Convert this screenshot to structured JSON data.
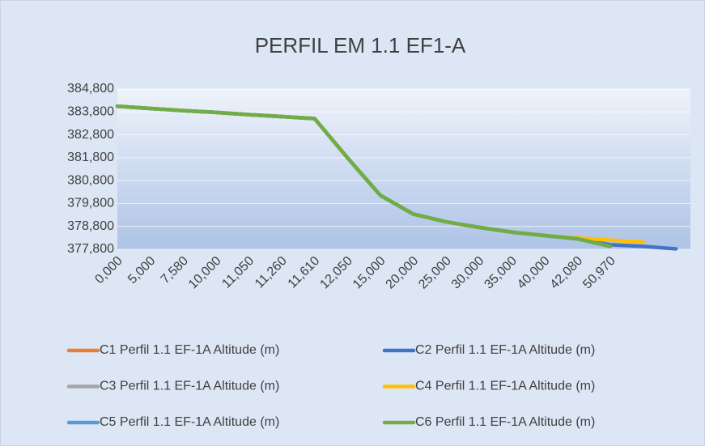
{
  "chart_data": {
    "type": "line",
    "title": "PERFIL EM 1.1 EF1-A",
    "categories": [
      "0,000",
      "5,000",
      "7,580",
      "10,000",
      "11,050",
      "11,260",
      "11,610",
      "12,050",
      "15,000",
      "20,000",
      "25,000",
      "30,000",
      "35,000",
      "40,000",
      "42,080",
      "50,970",
      null,
      null
    ],
    "series": [
      {
        "name": "C1 Perfil 1.1 EF-1A Altitude (m)",
        "color": "#ed7d31",
        "values": [
          384.05,
          383.95,
          383.86,
          383.78,
          383.68,
          383.6,
          383.51,
          381.8,
          380.16,
          379.34,
          379.0,
          378.76,
          378.55,
          378.4,
          378.26,
          377.93,
          null,
          null
        ]
      },
      {
        "name": "C2 Perfil 1.1 EF-1A Altitude (m)",
        "color": "#4472c4",
        "values": [
          384.05,
          383.95,
          383.86,
          383.78,
          383.68,
          383.6,
          383.51,
          381.8,
          380.16,
          379.34,
          379.0,
          378.76,
          378.55,
          378.4,
          378.26,
          378.0,
          377.93,
          377.82
        ]
      },
      {
        "name": "C3 Perfil 1.1 EF-1A Altitude (m)",
        "color": "#a5a5a5",
        "values": [
          384.05,
          383.95,
          383.86,
          383.78,
          383.68,
          383.6,
          383.51,
          381.8,
          380.16,
          379.34,
          379.0,
          378.76,
          378.55,
          378.4,
          378.26,
          377.93,
          null,
          null
        ]
      },
      {
        "name": "C4 Perfil 1.1 EF-1A Altitude (m)",
        "color": "#ffc000",
        "values": [
          384.05,
          383.95,
          383.86,
          383.78,
          383.68,
          383.6,
          383.51,
          381.8,
          380.16,
          379.34,
          379.0,
          378.76,
          378.55,
          378.4,
          378.3,
          378.2,
          378.12,
          null
        ]
      },
      {
        "name": "C5 Perfil 1.1 EF-1A Altitude (m)",
        "color": "#5b9bd5",
        "values": [
          384.05,
          383.95,
          383.86,
          383.78,
          383.68,
          383.6,
          383.51,
          381.8,
          380.16,
          379.34,
          379.0,
          378.76,
          378.55,
          378.4,
          378.26,
          377.93,
          null,
          null
        ]
      },
      {
        "name": "C6 Perfil 1.1 EF-1A Altitude (m)",
        "color": "#70ad47",
        "values": [
          384.05,
          383.95,
          383.86,
          383.78,
          383.68,
          383.6,
          383.51,
          381.8,
          380.16,
          379.34,
          379.0,
          378.76,
          378.55,
          378.4,
          378.26,
          377.93,
          null,
          null
        ]
      }
    ],
    "ylim": [
      377.8,
      384.8
    ],
    "yticks": [
      {
        "value": 377.8,
        "label": "377,800"
      },
      {
        "value": 378.8,
        "label": "378,800"
      },
      {
        "value": 379.8,
        "label": "379,800"
      },
      {
        "value": 380.8,
        "label": "380,800"
      },
      {
        "value": 381.8,
        "label": "381,800"
      },
      {
        "value": 382.8,
        "label": "382,800"
      },
      {
        "value": 383.8,
        "label": "383,800"
      },
      {
        "value": 384.8,
        "label": "384,800"
      }
    ],
    "grid": true,
    "legend": "bottom"
  }
}
